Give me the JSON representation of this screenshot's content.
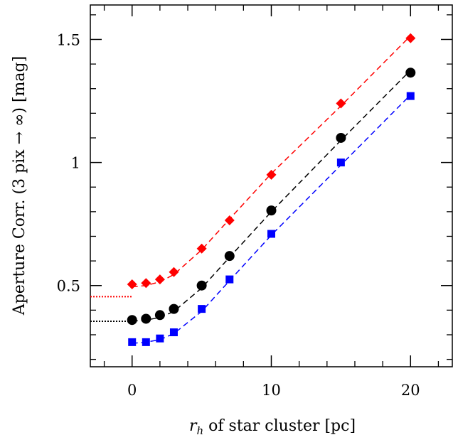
{
  "chart_data": {
    "type": "scatter",
    "xlabel_var": "r",
    "xlabel_sub": "h",
    "xlabel_rest": " of star cluster [pc]",
    "ylabel": "Aperture Corr. (3 pix → ∞) [mag]",
    "xlim": [
      -3,
      23
    ],
    "ylim": [
      0.17,
      1.64
    ],
    "x_ticks": [
      0,
      10,
      20
    ],
    "x_tick_labels": [
      "0",
      "10",
      "20"
    ],
    "y_ticks": [
      0.5,
      1,
      1.5
    ],
    "y_tick_labels": [
      "0.5",
      "1",
      "1.5"
    ],
    "x_minor_step": 2,
    "y_minor_step": 0.1,
    "grid": false,
    "legend": "none",
    "series": [
      {
        "marker": "diamond",
        "color": "#ff0000",
        "x": [
          0,
          1,
          2,
          3,
          5,
          7,
          10,
          15,
          20
        ],
        "y": [
          0.505,
          0.51,
          0.525,
          0.555,
          0.65,
          0.765,
          0.95,
          1.24,
          1.505
        ],
        "fit_y": [
          0.495,
          0.5,
          0.515,
          0.545,
          0.645,
          0.77,
          0.955,
          1.23,
          1.515
        ],
        "baseline": 0.455
      },
      {
        "marker": "circle",
        "color": "#000000",
        "x": [
          0,
          1,
          2,
          3,
          5,
          7,
          10,
          15,
          20
        ],
        "y": [
          0.36,
          0.365,
          0.38,
          0.405,
          0.5,
          0.62,
          0.805,
          1.1,
          1.365
        ],
        "fit_y": [
          0.355,
          0.36,
          0.37,
          0.395,
          0.49,
          0.615,
          0.8,
          1.09,
          1.375
        ],
        "baseline": 0.355
      },
      {
        "marker": "square",
        "color": "#0000ff",
        "x": [
          0,
          1,
          2,
          3,
          5,
          7,
          10,
          15,
          20
        ],
        "y": [
          0.27,
          0.27,
          0.285,
          0.31,
          0.405,
          0.525,
          0.71,
          1.0,
          1.27
        ],
        "fit_y": [
          0.265,
          0.27,
          0.28,
          0.305,
          0.395,
          0.52,
          0.705,
          0.99,
          1.275
        ],
        "baseline": null
      }
    ]
  }
}
